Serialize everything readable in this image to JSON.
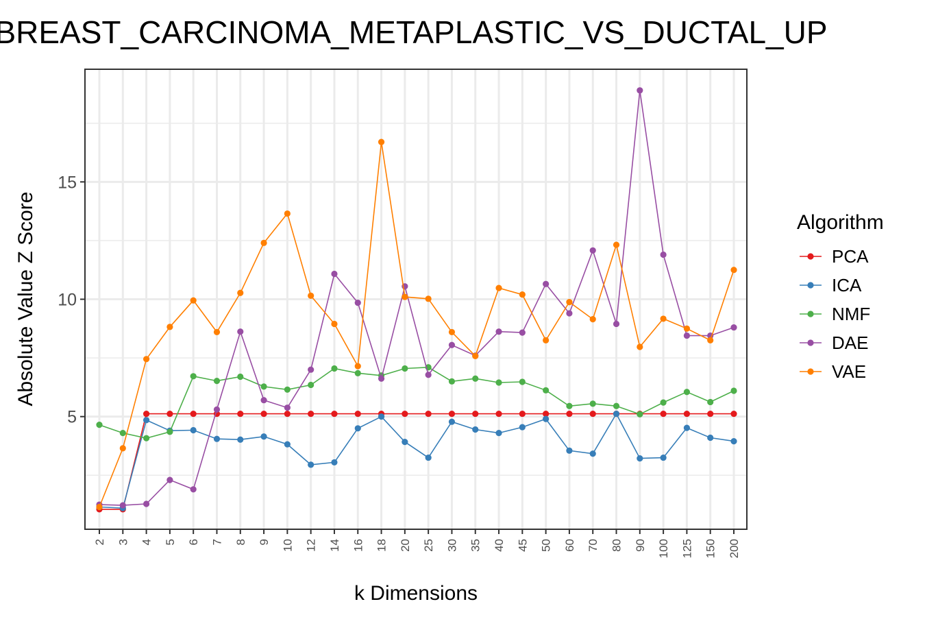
{
  "chart_data": {
    "type": "line",
    "title": "BREAST_CARCINOMA_METAPLASTIC_VS_DUCTAL_UP",
    "xlabel": "k Dimensions",
    "ylabel": "Absolute Value Z Score",
    "legend_title": "Algorithm",
    "legend_position": "right",
    "grid": true,
    "ylim": [
      0.2,
      19.8
    ],
    "yticks": [
      5,
      10,
      15
    ],
    "x": [
      "2",
      "3",
      "4",
      "5",
      "6",
      "7",
      "8",
      "9",
      "10",
      "12",
      "14",
      "16",
      "18",
      "20",
      "25",
      "30",
      "35",
      "40",
      "45",
      "50",
      "60",
      "70",
      "80",
      "90",
      "100",
      "125",
      "150",
      "200"
    ],
    "series": [
      {
        "name": "PCA",
        "color": "#E41A1C",
        "values": [
          1.05,
          1.05,
          5.12,
          5.12,
          5.12,
          5.12,
          5.12,
          5.12,
          5.12,
          5.12,
          5.12,
          5.12,
          5.12,
          5.12,
          5.12,
          5.12,
          5.12,
          5.12,
          5.12,
          5.12,
          5.12,
          5.12,
          5.12,
          5.12,
          5.12,
          5.12,
          5.12,
          5.12
        ]
      },
      {
        "name": "ICA",
        "color": "#377EB8",
        "values": [
          1.15,
          1.1,
          4.85,
          4.4,
          4.42,
          4.05,
          4.02,
          4.15,
          3.82,
          2.95,
          3.05,
          4.5,
          5.0,
          3.92,
          3.25,
          4.78,
          4.45,
          4.3,
          4.55,
          4.9,
          3.55,
          3.42,
          5.12,
          3.22,
          3.25,
          4.52,
          4.1,
          3.95
        ]
      },
      {
        "name": "NMF",
        "color": "#4DAF4A",
        "values": [
          4.65,
          4.3,
          4.08,
          4.35,
          6.72,
          6.52,
          6.7,
          6.28,
          6.15,
          6.35,
          7.05,
          6.85,
          6.75,
          7.05,
          7.1,
          6.5,
          6.62,
          6.45,
          6.48,
          6.12,
          5.45,
          5.55,
          5.45,
          5.1,
          5.6,
          6.05,
          5.62,
          6.1
        ]
      },
      {
        "name": "DAE",
        "color": "#984EA3",
        "values": [
          1.25,
          1.22,
          1.28,
          2.3,
          1.9,
          5.3,
          8.62,
          5.7,
          5.38,
          7.0,
          11.08,
          9.85,
          6.62,
          10.55,
          6.78,
          8.05,
          7.6,
          8.62,
          8.58,
          10.65,
          9.4,
          12.08,
          8.95,
          18.9,
          11.9,
          8.45,
          8.45,
          8.8
        ]
      },
      {
        "name": "VAE",
        "color": "#FF7F00",
        "values": [
          1.15,
          3.65,
          7.45,
          8.82,
          9.95,
          8.6,
          10.27,
          12.4,
          13.65,
          10.15,
          8.95,
          7.15,
          16.7,
          10.1,
          10.02,
          8.6,
          7.58,
          10.48,
          10.2,
          8.25,
          9.88,
          9.15,
          12.32,
          7.97,
          9.17,
          8.75,
          8.25,
          11.25
        ]
      }
    ]
  }
}
